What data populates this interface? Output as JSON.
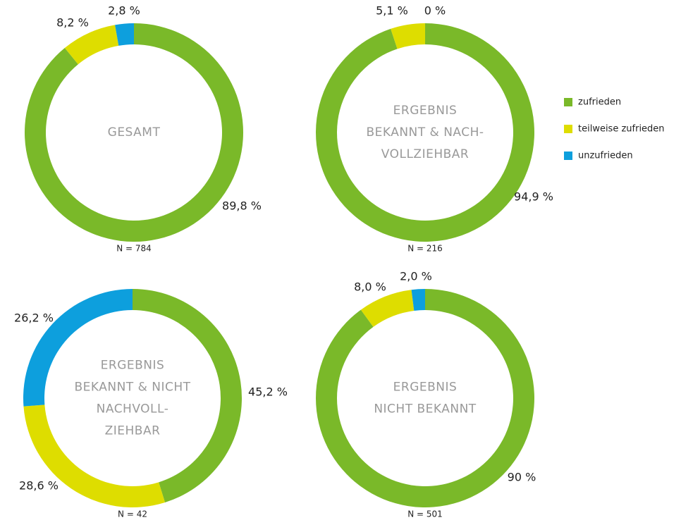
{
  "legend": {
    "labels": [
      "zufrieden",
      "teilweise zufrieden",
      "unzufrieden"
    ],
    "colors": [
      "#7ab929",
      "#dedd00",
      "#0d9fdd"
    ]
  },
  "chart_data": [
    {
      "type": "pie",
      "title": [
        "GESAMT"
      ],
      "values": [
        89.8,
        8.2,
        2.8
      ],
      "value_labels": [
        "89,8 %",
        "8,2 %",
        "2,8 %"
      ],
      "note": "N = 784"
    },
    {
      "type": "pie",
      "title": [
        "ERGEBNIS",
        "BEKANNT & NACH-",
        "VOLLZIEHBAR"
      ],
      "values": [
        94.9,
        5.1,
        0
      ],
      "value_labels": [
        "94,9 %",
        "5,1 %",
        "0 %"
      ],
      "note": "N = 216"
    },
    {
      "type": "pie",
      "title": [
        "ERGEBNIS",
        "BEKANNT & NICHT",
        "NACHVOLL-",
        "ZIEHBAR"
      ],
      "values": [
        45.2,
        28.6,
        26.2
      ],
      "value_labels": [
        "45,2 %",
        "28,6 %",
        "26,2 %"
      ],
      "note": "N = 42"
    },
    {
      "type": "pie",
      "title": [
        "ERGEBNIS",
        "NICHT BEKANNT"
      ],
      "values": [
        90,
        8.0,
        2.0
      ],
      "value_labels": [
        "90 %",
        "8,0 %",
        "2,0 %"
      ],
      "note": "N = 501"
    }
  ]
}
